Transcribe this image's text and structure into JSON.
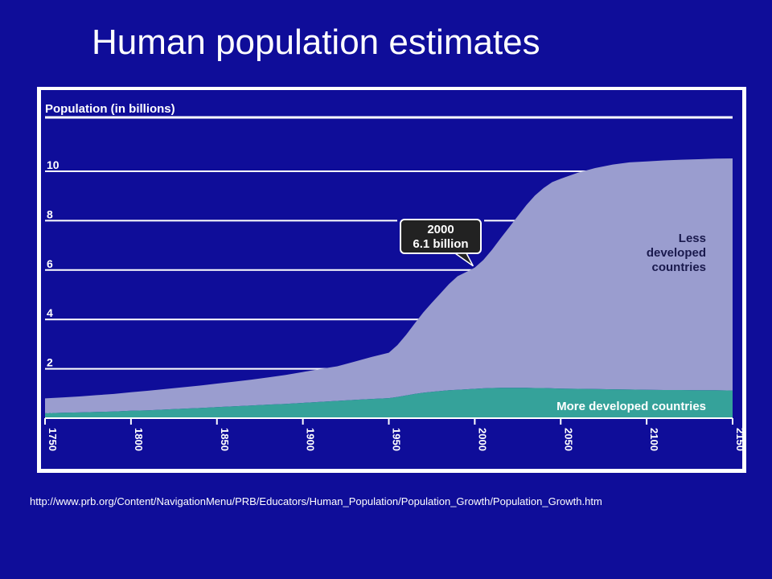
{
  "slide": {
    "title": "Human population estimates",
    "source_url": "http://www.prb.org/Content/NavigationMenu/PRB/Educators/Human_Population/Population_Growth/Population_Growth.htm"
  },
  "colors": {
    "slide_background": "#0f0d99",
    "plot_background": "#0f0d99",
    "less_developed_fill": "#9a9dcf",
    "more_developed_fill": "#35a29a",
    "gridline": "#ffffff",
    "text": "#ffffff"
  },
  "chart_data": {
    "type": "area",
    "stacked": true,
    "ylabel": "Population (in billions)",
    "ylim": [
      0,
      12
    ],
    "yticks": [
      0,
      2,
      4,
      6,
      8,
      10
    ],
    "xlim": [
      1750,
      2150
    ],
    "x": [
      1750,
      1760,
      1770,
      1780,
      1790,
      1800,
      1810,
      1820,
      1830,
      1840,
      1850,
      1860,
      1870,
      1880,
      1890,
      1900,
      1910,
      1920,
      1930,
      1940,
      1950,
      1955,
      1960,
      1965,
      1970,
      1975,
      1980,
      1985,
      1990,
      1995,
      2000,
      2005,
      2010,
      2015,
      2020,
      2025,
      2030,
      2035,
      2040,
      2045,
      2050,
      2060,
      2070,
      2080,
      2090,
      2100,
      2110,
      2120,
      2130,
      2140,
      2150
    ],
    "xticks": [
      1750,
      1800,
      1850,
      1900,
      1950,
      2000,
      2050,
      2100,
      2150
    ],
    "xtick_labels": [
      "1750",
      "1800",
      "1850",
      "1900",
      "1950",
      "2000",
      "2050",
      "2100",
      "2150"
    ],
    "series": [
      {
        "name": "More developed countries",
        "values": [
          0.2,
          0.22,
          0.23,
          0.25,
          0.27,
          0.3,
          0.32,
          0.35,
          0.38,
          0.41,
          0.45,
          0.48,
          0.51,
          0.55,
          0.58,
          0.62,
          0.66,
          0.7,
          0.74,
          0.78,
          0.81,
          0.86,
          0.92,
          0.98,
          1.03,
          1.07,
          1.1,
          1.13,
          1.15,
          1.17,
          1.19,
          1.21,
          1.22,
          1.23,
          1.23,
          1.23,
          1.23,
          1.22,
          1.22,
          1.21,
          1.2,
          1.19,
          1.18,
          1.17,
          1.16,
          1.15,
          1.14,
          1.14,
          1.13,
          1.13,
          1.12
        ]
      },
      {
        "name": "Less developed countries",
        "values": [
          0.6,
          0.62,
          0.65,
          0.68,
          0.71,
          0.75,
          0.79,
          0.83,
          0.87,
          0.91,
          0.95,
          1.0,
          1.05,
          1.1,
          1.17,
          1.25,
          1.33,
          1.4,
          1.55,
          1.7,
          1.84,
          2.1,
          2.45,
          2.85,
          3.25,
          3.6,
          3.95,
          4.3,
          4.6,
          4.75,
          4.91,
          5.2,
          5.6,
          6.05,
          6.5,
          6.95,
          7.4,
          7.8,
          8.1,
          8.35,
          8.5,
          8.75,
          8.95,
          9.1,
          9.2,
          9.25,
          9.3,
          9.33,
          9.36,
          9.38,
          9.4
        ]
      }
    ],
    "annotations": [
      {
        "x": 2000,
        "y": 6.1,
        "line1": "2000",
        "line2": "6.1 billion"
      }
    ],
    "series_labels": {
      "less": [
        "Less",
        "developed",
        "countries"
      ],
      "more": "More developed countries"
    }
  }
}
